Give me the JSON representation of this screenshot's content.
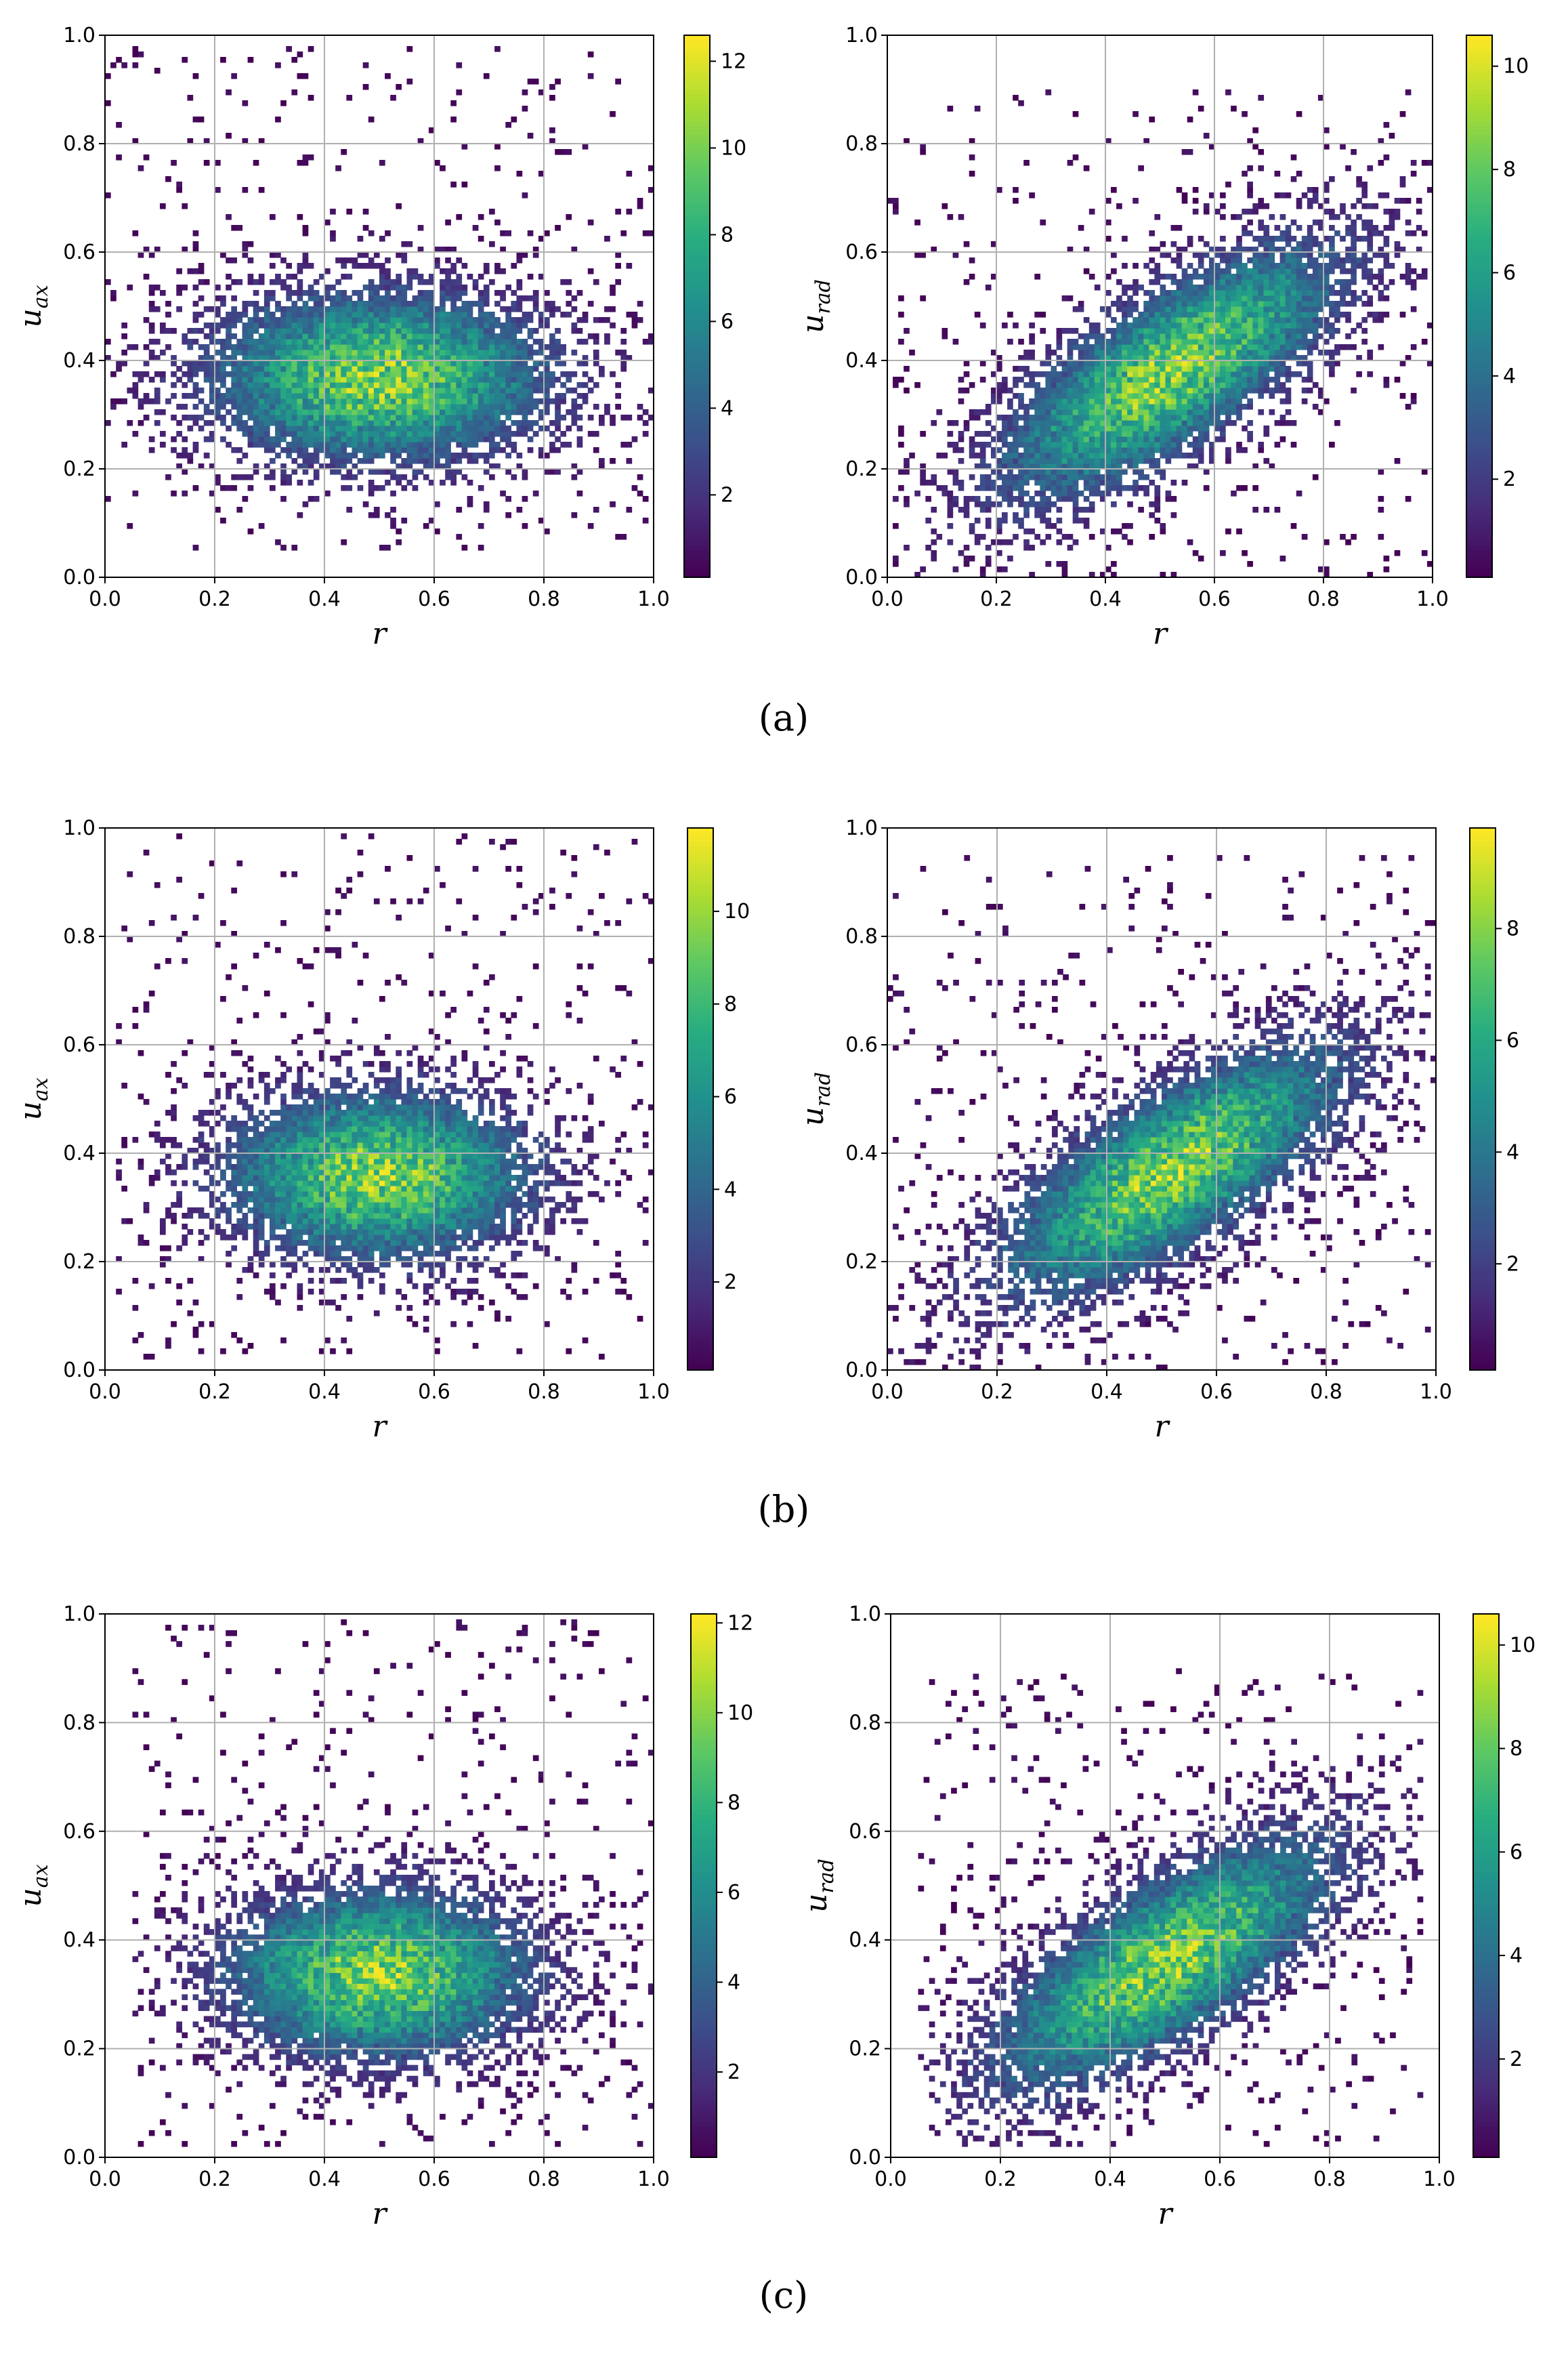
{
  "figure": {
    "panel_labels": [
      "(a)",
      "(b)",
      "(c)"
    ]
  },
  "chart_data": [
    {
      "type": "heatmap",
      "panel": "(a)",
      "position": "left",
      "xlabel": "r",
      "ylabel_base": "u",
      "ylabel_sub": "ax",
      "xlim": [
        0,
        1
      ],
      "ylim": [
        0,
        1
      ],
      "xticks": [
        "0.0",
        "0.2",
        "0.4",
        "0.6",
        "0.8",
        "1.0"
      ],
      "yticks": [
        "0.0",
        "0.2",
        "0.4",
        "0.6",
        "0.8",
        "1.0"
      ],
      "colorbar": {
        "min": 0.1,
        "max": 12.6,
        "ticks": [
          "2",
          "4",
          "6",
          "8",
          "10",
          "12"
        ]
      },
      "colormap": "viridis",
      "distribution": {
        "center_r": 0.5,
        "center_u": 0.37,
        "spread_r": 0.2,
        "spread_u": 0.1,
        "slope": 0.0,
        "peak": 12.6,
        "x_range": [
          0.0,
          1.0
        ],
        "u_range": [
          0.05,
          0.98
        ]
      }
    },
    {
      "type": "heatmap",
      "panel": "(a)",
      "position": "right",
      "xlabel": "r",
      "ylabel_base": "u",
      "ylabel_sub": "rad",
      "xlim": [
        0,
        1
      ],
      "ylim": [
        0,
        1
      ],
      "xticks": [
        "0.0",
        "0.2",
        "0.4",
        "0.6",
        "0.8",
        "1.0"
      ],
      "yticks": [
        "0.0",
        "0.2",
        "0.4",
        "0.6",
        "0.8",
        "1.0"
      ],
      "colorbar": {
        "min": 0.1,
        "max": 10.6,
        "ticks": [
          "2",
          "4",
          "6",
          "8",
          "10"
        ]
      },
      "colormap": "viridis",
      "distribution": {
        "center_r": 0.52,
        "center_u": 0.38,
        "spread_r": 0.2,
        "spread_u": 0.1,
        "slope": 0.55,
        "peak": 10.6,
        "x_range": [
          0.0,
          1.0
        ],
        "u_range": [
          0.0,
          0.9
        ]
      }
    },
    {
      "type": "heatmap",
      "panel": "(b)",
      "position": "left",
      "xlabel": "r",
      "ylabel_base": "u",
      "ylabel_sub": "ax",
      "xlim": [
        0,
        1
      ],
      "ylim": [
        0,
        1
      ],
      "xticks": [
        "0.0",
        "0.2",
        "0.4",
        "0.6",
        "0.8",
        "1.0"
      ],
      "yticks": [
        "0.0",
        "0.2",
        "0.4",
        "0.6",
        "0.8",
        "1.0"
      ],
      "colorbar": {
        "min": 0.1,
        "max": 11.8,
        "ticks": [
          "2",
          "4",
          "6",
          "8",
          "10"
        ]
      },
      "colormap": "viridis",
      "distribution": {
        "center_r": 0.5,
        "center_u": 0.36,
        "spread_r": 0.18,
        "spread_u": 0.1,
        "slope": 0.0,
        "peak": 11.8,
        "x_range": [
          0.02,
          1.0
        ],
        "u_range": [
          0.02,
          0.99
        ]
      }
    },
    {
      "type": "heatmap",
      "panel": "(b)",
      "position": "right",
      "xlabel": "r",
      "ylabel_base": "u",
      "ylabel_sub": "rad",
      "xlim": [
        0,
        1
      ],
      "ylim": [
        0,
        1
      ],
      "xticks": [
        "0.0",
        "0.2",
        "0.4",
        "0.6",
        "0.8",
        "1.0"
      ],
      "yticks": [
        "0.0",
        "0.2",
        "0.4",
        "0.6",
        "0.8",
        "1.0"
      ],
      "colorbar": {
        "min": 0.1,
        "max": 9.8,
        "ticks": [
          "2",
          "4",
          "6",
          "8"
        ]
      },
      "colormap": "viridis",
      "distribution": {
        "center_r": 0.52,
        "center_u": 0.37,
        "spread_r": 0.2,
        "spread_u": 0.1,
        "slope": 0.55,
        "peak": 9.8,
        "x_range": [
          0.0,
          1.0
        ],
        "u_range": [
          0.0,
          0.95
        ]
      }
    },
    {
      "type": "heatmap",
      "panel": "(c)",
      "position": "left",
      "xlabel": "r",
      "ylabel_base": "u",
      "ylabel_sub": "ax",
      "xlim": [
        0,
        1
      ],
      "ylim": [
        0,
        1
      ],
      "xticks": [
        "0.0",
        "0.2",
        "0.4",
        "0.6",
        "0.8",
        "1.0"
      ],
      "yticks": [
        "0.0",
        "0.2",
        "0.4",
        "0.6",
        "0.8",
        "1.0"
      ],
      "colorbar": {
        "min": 0.1,
        "max": 12.2,
        "ticks": [
          "2",
          "4",
          "6",
          "8",
          "10",
          "12"
        ]
      },
      "colormap": "viridis",
      "distribution": {
        "center_r": 0.5,
        "center_u": 0.34,
        "spread_r": 0.18,
        "spread_u": 0.1,
        "slope": 0.0,
        "peak": 12.2,
        "x_range": [
          0.05,
          1.0
        ],
        "u_range": [
          0.02,
          0.99
        ]
      }
    },
    {
      "type": "heatmap",
      "panel": "(c)",
      "position": "right",
      "xlabel": "r",
      "ylabel_base": "u",
      "ylabel_sub": "rad",
      "xlim": [
        0,
        1
      ],
      "ylim": [
        0,
        1
      ],
      "xticks": [
        "0.0",
        "0.2",
        "0.4",
        "0.6",
        "0.8",
        "1.0"
      ],
      "yticks": [
        "0.0",
        "0.2",
        "0.4",
        "0.6",
        "0.8",
        "1.0"
      ],
      "colorbar": {
        "min": 0.1,
        "max": 10.6,
        "ticks": [
          "2",
          "4",
          "6",
          "8",
          "10"
        ]
      },
      "colormap": "viridis",
      "distribution": {
        "center_r": 0.5,
        "center_u": 0.36,
        "spread_r": 0.2,
        "spread_u": 0.1,
        "slope": 0.55,
        "peak": 10.6,
        "x_range": [
          0.05,
          0.97
        ],
        "u_range": [
          0.02,
          0.9
        ]
      }
    }
  ]
}
